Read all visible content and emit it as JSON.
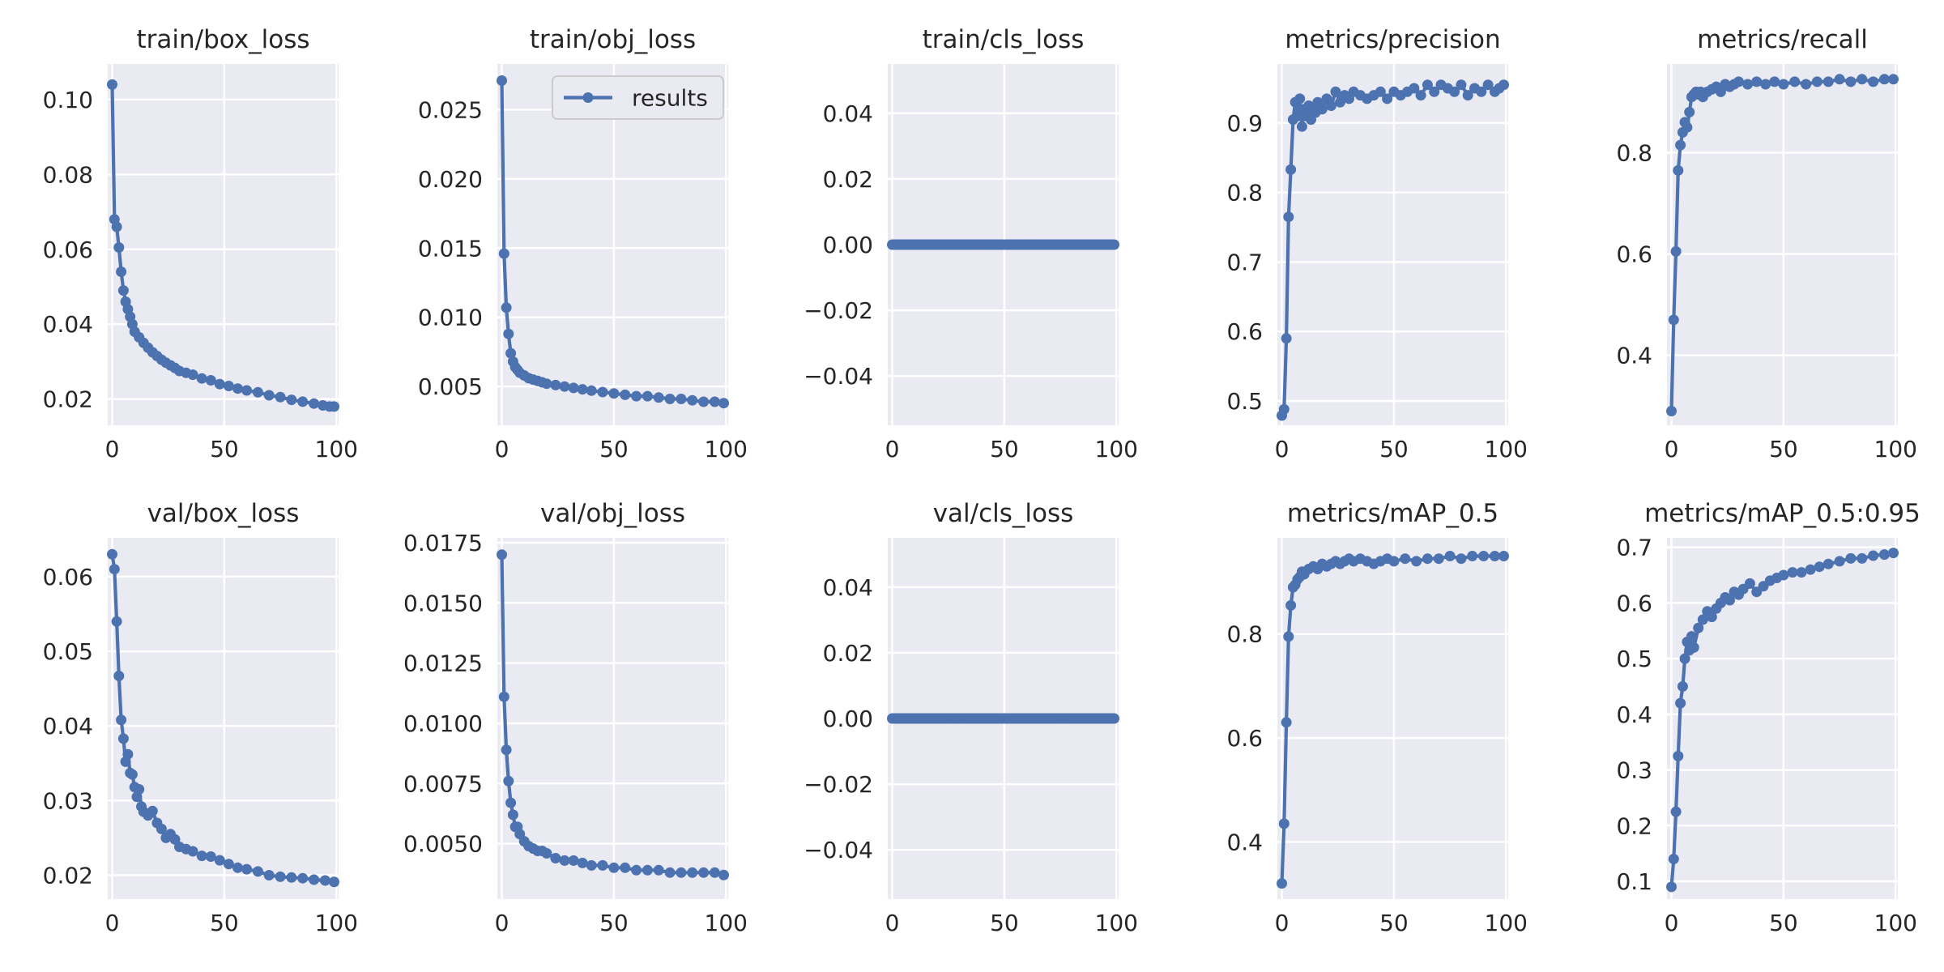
{
  "figure": {
    "panel_bg": "#eaeaf2",
    "line_color": "#4c72b0",
    "grid_color": "#ffffff",
    "text_color": "#262626"
  },
  "chart_data": [
    {
      "type": "line",
      "title": "train/box_loss",
      "xlim": [
        -2,
        101
      ],
      "ylim": [
        0.013,
        0.1095
      ],
      "xticks": [
        0,
        50,
        100
      ],
      "yticks": [
        0.02,
        0.04,
        0.06,
        0.08,
        0.1
      ],
      "ytick_labels": [
        "0.02",
        "0.04",
        "0.06",
        "0.08",
        "0.10"
      ],
      "legend": null,
      "series": [
        {
          "name": "results",
          "x": [
            0,
            1,
            2,
            3,
            4,
            5,
            6,
            7,
            8,
            9,
            10,
            12,
            14,
            16,
            18,
            20,
            22,
            24,
            26,
            28,
            30,
            33,
            36,
            40,
            44,
            48,
            52,
            56,
            60,
            65,
            70,
            75,
            80,
            85,
            90,
            94,
            97,
            99
          ],
          "y": [
            0.104,
            0.068,
            0.066,
            0.0605,
            0.054,
            0.049,
            0.046,
            0.044,
            0.042,
            0.04,
            0.038,
            0.0365,
            0.035,
            0.0337,
            0.0325,
            0.0315,
            0.0305,
            0.0297,
            0.029,
            0.0283,
            0.0275,
            0.027,
            0.0265,
            0.0255,
            0.025,
            0.024,
            0.0235,
            0.0228,
            0.0223,
            0.0218,
            0.021,
            0.0205,
            0.0198,
            0.0193,
            0.0188,
            0.0183,
            0.018,
            0.018
          ]
        }
      ]
    },
    {
      "type": "line",
      "title": "train/obj_loss",
      "xlim": [
        -2,
        101
      ],
      "ylim": [
        0.0022,
        0.0283
      ],
      "xticks": [
        0,
        50,
        100
      ],
      "yticks": [
        0.005,
        0.01,
        0.015,
        0.02,
        0.025
      ],
      "ytick_labels": [
        "0.005",
        "0.010",
        "0.015",
        "0.020",
        "0.025"
      ],
      "legend": "results",
      "series": [
        {
          "name": "results",
          "x": [
            0,
            1,
            2,
            3,
            4,
            5,
            6,
            7,
            8,
            10,
            12,
            14,
            16,
            18,
            20,
            24,
            28,
            32,
            36,
            40,
            45,
            50,
            55,
            60,
            65,
            70,
            75,
            80,
            85,
            90,
            95,
            99
          ],
          "y": [
            0.0271,
            0.0146,
            0.0107,
            0.0088,
            0.0074,
            0.0068,
            0.0064,
            0.0062,
            0.006,
            0.0058,
            0.0056,
            0.0055,
            0.0054,
            0.0053,
            0.0052,
            0.0051,
            0.005,
            0.0049,
            0.0048,
            0.0047,
            0.0046,
            0.0045,
            0.0044,
            0.0043,
            0.0043,
            0.0042,
            0.0041,
            0.0041,
            0.004,
            0.0039,
            0.0039,
            0.0038
          ]
        }
      ]
    },
    {
      "type": "line",
      "title": "train/cls_loss",
      "xlim": [
        -2,
        101
      ],
      "ylim": [
        -0.055,
        0.055
      ],
      "xticks": [
        0,
        50,
        100
      ],
      "yticks": [
        -0.04,
        -0.02,
        0.0,
        0.02,
        0.04
      ],
      "ytick_labels": [
        "−0.04",
        "−0.02",
        "0.00",
        "0.02",
        "0.04"
      ],
      "legend": null,
      "series": [
        {
          "name": "results",
          "x_range": [
            0,
            99
          ],
          "constant": 0.0
        }
      ]
    },
    {
      "type": "line",
      "title": "metrics/precision",
      "xlim": [
        -2,
        101
      ],
      "ylim": [
        0.465,
        0.985
      ],
      "xticks": [
        0,
        50,
        100
      ],
      "yticks": [
        0.5,
        0.6,
        0.7,
        0.8,
        0.9
      ],
      "ytick_labels": [
        "0.5",
        "0.6",
        "0.7",
        "0.8",
        "0.9"
      ],
      "legend": null,
      "series": [
        {
          "name": "results",
          "x": [
            0,
            1,
            2,
            3,
            4,
            5,
            6,
            7,
            8,
            9,
            10,
            11,
            12,
            13,
            14,
            15,
            16,
            18,
            20,
            22,
            24,
            26,
            28,
            30,
            32,
            35,
            38,
            41,
            44,
            47,
            50,
            53,
            56,
            59,
            62,
            65,
            68,
            71,
            74,
            77,
            80,
            83,
            86,
            89,
            92,
            95,
            97,
            99
          ],
          "y": [
            0.479,
            0.488,
            0.59,
            0.765,
            0.833,
            0.905,
            0.93,
            0.91,
            0.935,
            0.895,
            0.92,
            0.91,
            0.925,
            0.905,
            0.92,
            0.915,
            0.93,
            0.92,
            0.935,
            0.925,
            0.945,
            0.93,
            0.94,
            0.935,
            0.945,
            0.94,
            0.935,
            0.94,
            0.945,
            0.935,
            0.945,
            0.94,
            0.945,
            0.95,
            0.94,
            0.955,
            0.945,
            0.955,
            0.95,
            0.945,
            0.955,
            0.94,
            0.95,
            0.945,
            0.955,
            0.945,
            0.95,
            0.955
          ]
        }
      ]
    },
    {
      "type": "line",
      "title": "metrics/recall",
      "xlim": [
        -2,
        101
      ],
      "ylim": [
        0.262,
        0.975
      ],
      "xticks": [
        0,
        50,
        100
      ],
      "yticks": [
        0.4,
        0.6,
        0.8
      ],
      "ytick_labels": [
        "0.4",
        "0.6",
        "0.8"
      ],
      "legend": null,
      "series": [
        {
          "name": "results",
          "x": [
            0,
            1,
            2,
            3,
            4,
            5,
            6,
            7,
            8,
            9,
            10,
            11,
            12,
            13,
            14,
            16,
            18,
            20,
            22,
            24,
            26,
            28,
            30,
            34,
            38,
            42,
            46,
            50,
            55,
            60,
            65,
            70,
            75,
            80,
            85,
            90,
            95,
            99
          ],
          "y": [
            0.29,
            0.47,
            0.605,
            0.765,
            0.815,
            0.84,
            0.86,
            0.85,
            0.88,
            0.91,
            0.915,
            0.92,
            0.915,
            0.92,
            0.91,
            0.92,
            0.925,
            0.93,
            0.92,
            0.935,
            0.93,
            0.935,
            0.94,
            0.935,
            0.94,
            0.935,
            0.94,
            0.935,
            0.94,
            0.935,
            0.94,
            0.94,
            0.945,
            0.94,
            0.945,
            0.94,
            0.945,
            0.945
          ]
        }
      ]
    },
    {
      "type": "line",
      "title": "val/box_loss",
      "xlim": [
        -2,
        101
      ],
      "ylim": [
        0.0168,
        0.0652
      ],
      "xticks": [
        0,
        50,
        100
      ],
      "yticks": [
        0.02,
        0.03,
        0.04,
        0.05,
        0.06
      ],
      "ytick_labels": [
        "0.02",
        "0.03",
        "0.04",
        "0.05",
        "0.06"
      ],
      "legend": null,
      "series": [
        {
          "name": "results",
          "x": [
            0,
            1,
            2,
            3,
            4,
            5,
            6,
            7,
            8,
            9,
            10,
            11,
            12,
            13,
            14,
            16,
            18,
            20,
            22,
            24,
            26,
            28,
            30,
            33,
            36,
            40,
            44,
            48,
            52,
            56,
            60,
            65,
            70,
            75,
            80,
            85,
            90,
            95,
            99
          ],
          "y": [
            0.063,
            0.061,
            0.054,
            0.0467,
            0.0408,
            0.0383,
            0.0352,
            0.0362,
            0.0337,
            0.0335,
            0.0318,
            0.0305,
            0.0315,
            0.0292,
            0.0285,
            0.028,
            0.0286,
            0.027,
            0.0262,
            0.025,
            0.0255,
            0.0248,
            0.0238,
            0.0235,
            0.0232,
            0.0226,
            0.0225,
            0.022,
            0.0215,
            0.021,
            0.0208,
            0.0205,
            0.02,
            0.0198,
            0.0197,
            0.0196,
            0.0194,
            0.0193,
            0.0191
          ]
        }
      ]
    },
    {
      "type": "line",
      "title": "val/obj_loss",
      "xlim": [
        -2,
        101
      ],
      "ylim": [
        0.0027,
        0.0177
      ],
      "xticks": [
        0,
        50,
        100
      ],
      "yticks": [
        0.005,
        0.0075,
        0.01,
        0.0125,
        0.015,
        0.0175
      ],
      "ytick_labels": [
        "0.0050",
        "0.0075",
        "0.0100",
        "0.0125",
        "0.0150",
        "0.0175"
      ],
      "legend": null,
      "series": [
        {
          "name": "results",
          "x": [
            0,
            1,
            2,
            3,
            4,
            5,
            6,
            7,
            8,
            10,
            12,
            14,
            16,
            18,
            20,
            24,
            28,
            32,
            36,
            40,
            45,
            50,
            55,
            60,
            65,
            70,
            75,
            80,
            85,
            90,
            95,
            99
          ],
          "y": [
            0.017,
            0.0111,
            0.0089,
            0.0076,
            0.0067,
            0.0062,
            0.0057,
            0.0057,
            0.0054,
            0.0051,
            0.0049,
            0.0048,
            0.0047,
            0.0047,
            0.0046,
            0.0044,
            0.0043,
            0.0043,
            0.0042,
            0.0041,
            0.0041,
            0.004,
            0.004,
            0.0039,
            0.0039,
            0.0039,
            0.0038,
            0.0038,
            0.0038,
            0.0038,
            0.0038,
            0.0037
          ]
        }
      ]
    },
    {
      "type": "line",
      "title": "val/cls_loss",
      "xlim": [
        -2,
        101
      ],
      "ylim": [
        -0.055,
        0.055
      ],
      "xticks": [
        0,
        50,
        100
      ],
      "yticks": [
        -0.04,
        -0.02,
        0.0,
        0.02,
        0.04
      ],
      "ytick_labels": [
        "−0.04",
        "−0.02",
        "0.00",
        "0.02",
        "0.04"
      ],
      "legend": null,
      "series": [
        {
          "name": "results",
          "x_range": [
            0,
            99
          ],
          "constant": 0.0
        }
      ]
    },
    {
      "type": "line",
      "title": "metrics/mAP_0.5",
      "xlim": [
        -2,
        101
      ],
      "ylim": [
        0.29,
        0.985
      ],
      "xticks": [
        0,
        50,
        100
      ],
      "yticks": [
        0.4,
        0.6,
        0.8
      ],
      "ytick_labels": [
        "0.4",
        "0.6",
        "0.8"
      ],
      "legend": null,
      "series": [
        {
          "name": "results",
          "x": [
            0,
            1,
            2,
            3,
            4,
            5,
            6,
            7,
            8,
            9,
            10,
            12,
            14,
            16,
            18,
            20,
            22,
            24,
            26,
            28,
            30,
            32,
            35,
            38,
            41,
            44,
            47,
            50,
            55,
            60,
            65,
            70,
            75,
            80,
            85,
            90,
            95,
            99
          ],
          "y": [
            0.32,
            0.435,
            0.63,
            0.795,
            0.855,
            0.89,
            0.895,
            0.905,
            0.91,
            0.92,
            0.915,
            0.925,
            0.93,
            0.925,
            0.935,
            0.93,
            0.935,
            0.94,
            0.935,
            0.94,
            0.945,
            0.94,
            0.945,
            0.94,
            0.935,
            0.94,
            0.945,
            0.94,
            0.945,
            0.94,
            0.945,
            0.945,
            0.95,
            0.945,
            0.95,
            0.95,
            0.95,
            0.95
          ]
        }
      ]
    },
    {
      "type": "line",
      "title": "metrics/mAP_0.5:0.95",
      "xlim": [
        -2,
        101
      ],
      "ylim": [
        0.068,
        0.717
      ],
      "xticks": [
        0,
        50,
        100
      ],
      "yticks": [
        0.1,
        0.2,
        0.3,
        0.4,
        0.5,
        0.6,
        0.7
      ],
      "ytick_labels": [
        "0.1",
        "0.2",
        "0.3",
        "0.4",
        "0.5",
        "0.6",
        "0.7"
      ],
      "legend": null,
      "series": [
        {
          "name": "results",
          "x": [
            0,
            1,
            2,
            3,
            4,
            5,
            6,
            7,
            8,
            9,
            10,
            12,
            14,
            16,
            18,
            20,
            22,
            24,
            26,
            28,
            30,
            32,
            35,
            38,
            41,
            44,
            47,
            50,
            54,
            58,
            62,
            66,
            70,
            75,
            80,
            85,
            90,
            95,
            99
          ],
          "y": [
            0.09,
            0.14,
            0.225,
            0.325,
            0.42,
            0.45,
            0.5,
            0.53,
            0.515,
            0.54,
            0.52,
            0.555,
            0.57,
            0.585,
            0.575,
            0.59,
            0.6,
            0.61,
            0.605,
            0.62,
            0.615,
            0.625,
            0.635,
            0.62,
            0.63,
            0.64,
            0.645,
            0.65,
            0.655,
            0.655,
            0.66,
            0.665,
            0.67,
            0.675,
            0.68,
            0.68,
            0.685,
            0.687,
            0.69
          ]
        }
      ]
    }
  ]
}
